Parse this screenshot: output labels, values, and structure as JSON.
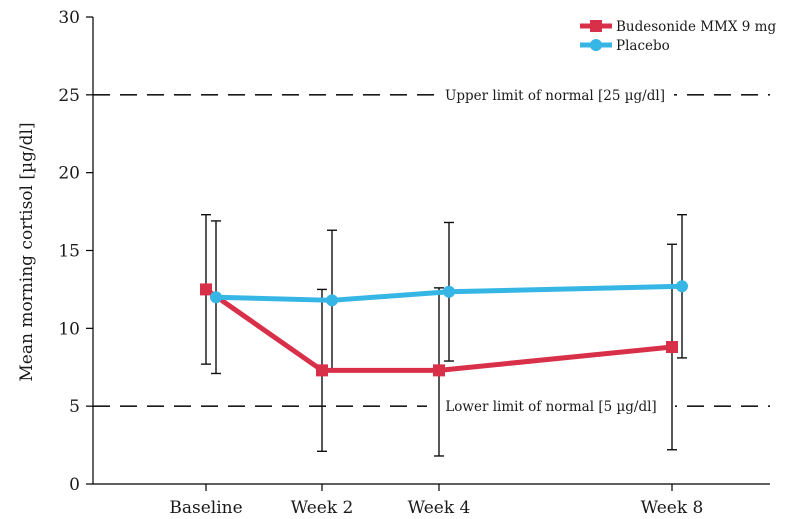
{
  "chart_data": {
    "type": "line",
    "categories": [
      "Baseline",
      "Week 2",
      "Week 4",
      "Week 8"
    ],
    "ylabel": "Mean morning cortisol [µg/dl]",
    "xlabel": "",
    "ylim": [
      0,
      30
    ],
    "yticks": [
      0,
      5,
      10,
      15,
      20,
      25,
      30
    ],
    "grid": false,
    "legend_position": "top-right",
    "series": [
      {
        "name": "Budesonide MMX 9 mg",
        "color": "#d9304a",
        "marker": "square",
        "values": [
          12.5,
          7.3,
          7.3,
          8.8
        ],
        "error_low": [
          7.7,
          2.1,
          1.8,
          2.2
        ],
        "error_high": [
          17.3,
          12.5,
          12.6,
          15.4
        ]
      },
      {
        "name": "Placebo",
        "color": "#36b6e4",
        "marker": "circle",
        "values": [
          12.0,
          11.8,
          12.35,
          12.7
        ],
        "error_low": [
          7.1,
          7.3,
          7.9,
          8.1
        ],
        "error_high": [
          16.9,
          16.3,
          16.8,
          17.3
        ]
      }
    ],
    "reference_lines": [
      {
        "y": 25,
        "label": "Upper limit of normal [25 µg/dl]"
      },
      {
        "y": 5,
        "label": "Lower limit of normal [5 µg/dl]"
      }
    ]
  }
}
